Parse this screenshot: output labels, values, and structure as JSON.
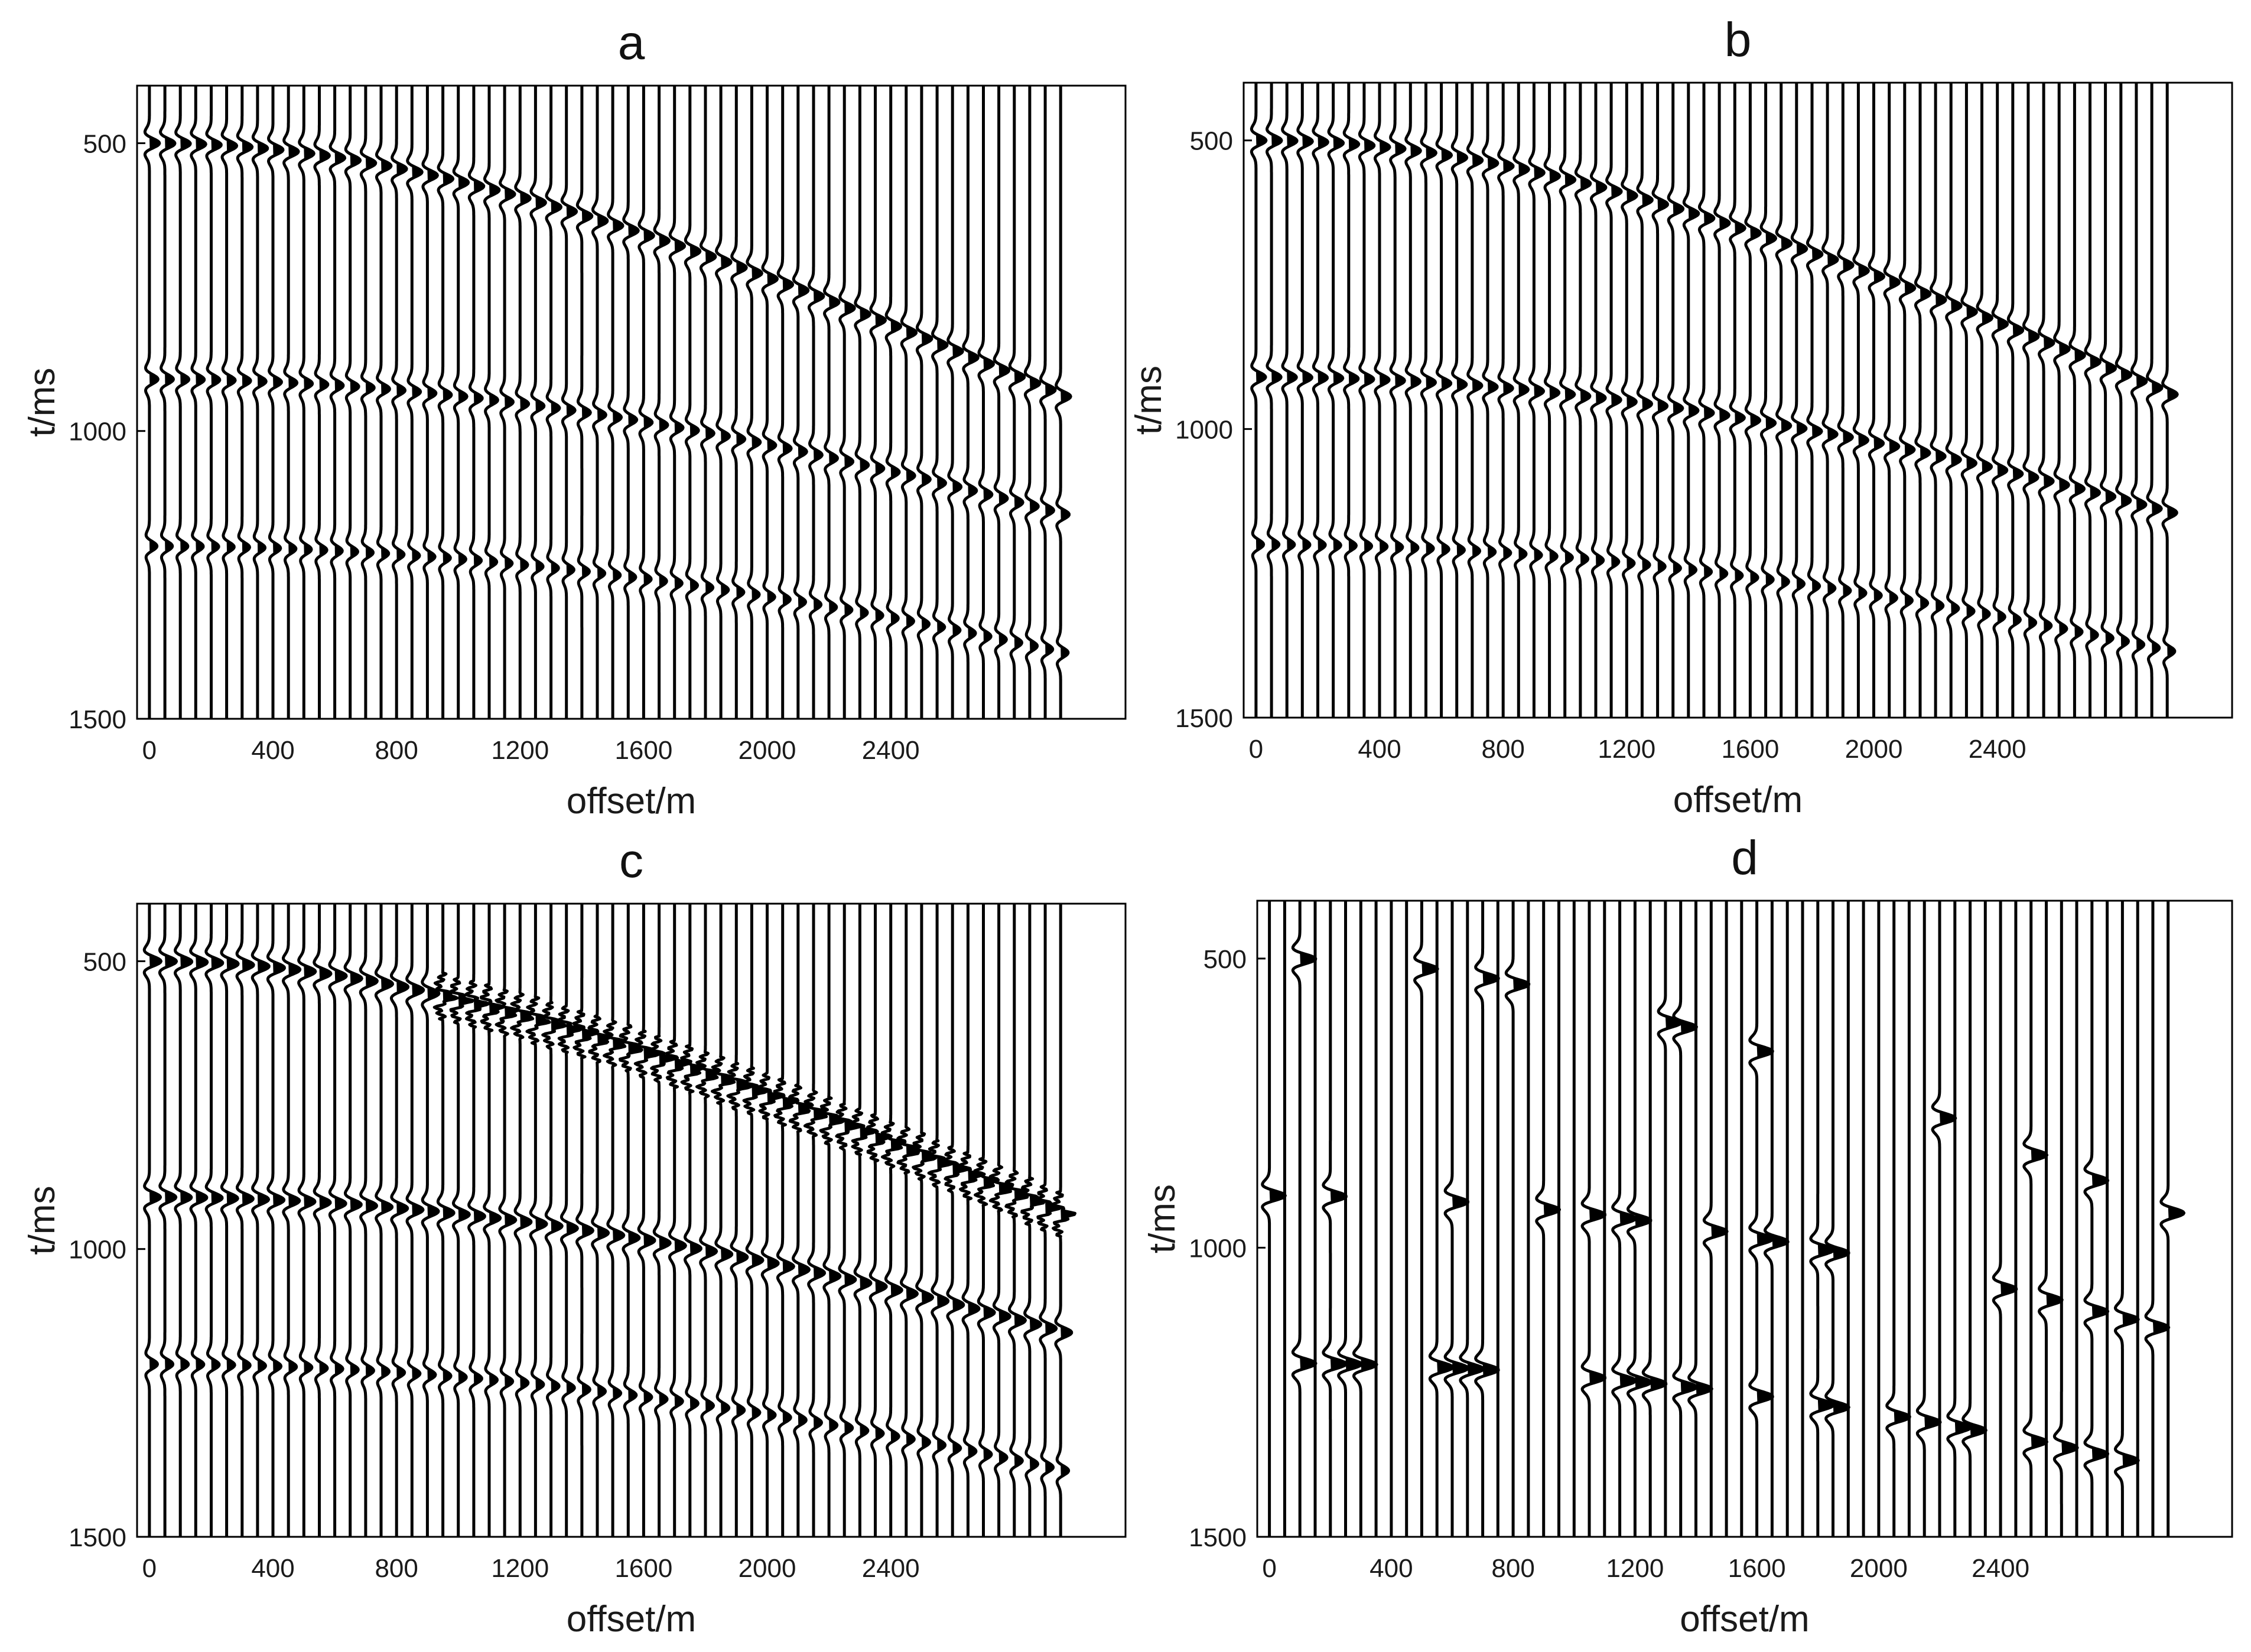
{
  "chart_data": [
    {
      "panel": "a",
      "type": "seismic_wiggle",
      "title": "a",
      "xlabel": "offset/m",
      "ylabel": "t/ms",
      "xticks": [
        0,
        400,
        800,
        1200,
        1600,
        2000,
        2400
      ],
      "yticks": [
        500,
        1000,
        1500
      ],
      "xlim": [
        -40,
        3160
      ],
      "ylim": [
        400,
        1500
      ],
      "trace_spacing_m": 50,
      "trace_count": 60,
      "events": [
        {
          "t0_ms": 500,
          "t_at_max_offset_ms": 940,
          "strength": 1.0
        },
        {
          "t0_ms": 910,
          "t_at_max_offset_ms": 1145,
          "strength": 0.85
        },
        {
          "t0_ms": 1200,
          "t_at_max_offset_ms": 1385,
          "strength": 0.75
        }
      ],
      "noise": "none",
      "missing_traces": "none"
    },
    {
      "panel": "b",
      "type": "seismic_wiggle",
      "title": "b",
      "xlabel": "offset/m",
      "ylabel": "t/ms",
      "xticks": [
        0,
        400,
        800,
        1200,
        1600,
        2000,
        2400
      ],
      "yticks": [
        500,
        1000,
        1500
      ],
      "xlim": [
        -40,
        3160
      ],
      "ylim": [
        400,
        1500
      ],
      "trace_spacing_m": 50,
      "trace_count": 60,
      "events": [
        {
          "t0_ms": 500,
          "t_at_max_offset_ms": 940,
          "strength": 1.0
        },
        {
          "t0_ms": 910,
          "t_at_max_offset_ms": 1145,
          "strength": 0.95
        },
        {
          "t0_ms": 1200,
          "t_at_max_offset_ms": 1385,
          "strength": 0.75
        }
      ],
      "noise": "none",
      "missing_traces": "none"
    },
    {
      "panel": "c",
      "type": "seismic_wiggle",
      "title": "c",
      "xlabel": "offset/m",
      "ylabel": "t/ms",
      "xticks": [
        0,
        400,
        800,
        1200,
        1600,
        2000,
        2400
      ],
      "yticks": [
        500,
        1000,
        1500
      ],
      "xlim": [
        -40,
        3160
      ],
      "ylim": [
        400,
        1500
      ],
      "trace_spacing_m": 50,
      "trace_count": 60,
      "events": [
        {
          "t0_ms": 500,
          "t_at_max_offset_ms": 940,
          "strength": 1.15
        },
        {
          "t0_ms": 910,
          "t_at_max_offset_ms": 1145,
          "strength": 1.1
        },
        {
          "t0_ms": 1200,
          "t_at_max_offset_ms": 1385,
          "strength": 0.8
        }
      ],
      "noise": "aliased artifacts along first event",
      "missing_traces": "none"
    },
    {
      "panel": "d",
      "type": "seismic_wiggle",
      "title": "d",
      "xlabel": "offset/m",
      "ylabel": "t/ms",
      "xticks": [
        0,
        400,
        800,
        1200,
        1600,
        2000,
        2400
      ],
      "yticks": [
        500,
        1000,
        1500
      ],
      "xlim": [
        -40,
        3160
      ],
      "ylim": [
        400,
        1500
      ],
      "trace_spacing_m": 50,
      "trace_count": 60,
      "events": [
        {
          "t0_ms": 500,
          "t_at_max_offset_ms": 940,
          "strength": 1.0
        },
        {
          "t0_ms": 910,
          "t_at_max_offset_ms": 1145,
          "strength": 1.0
        },
        {
          "t0_ms": 1200,
          "t_at_max_offset_ms": 1385,
          "strength": 1.0
        }
      ],
      "noise": "sparse spikes",
      "missing_traces": "most traces show only sparse isolated events"
    }
  ]
}
